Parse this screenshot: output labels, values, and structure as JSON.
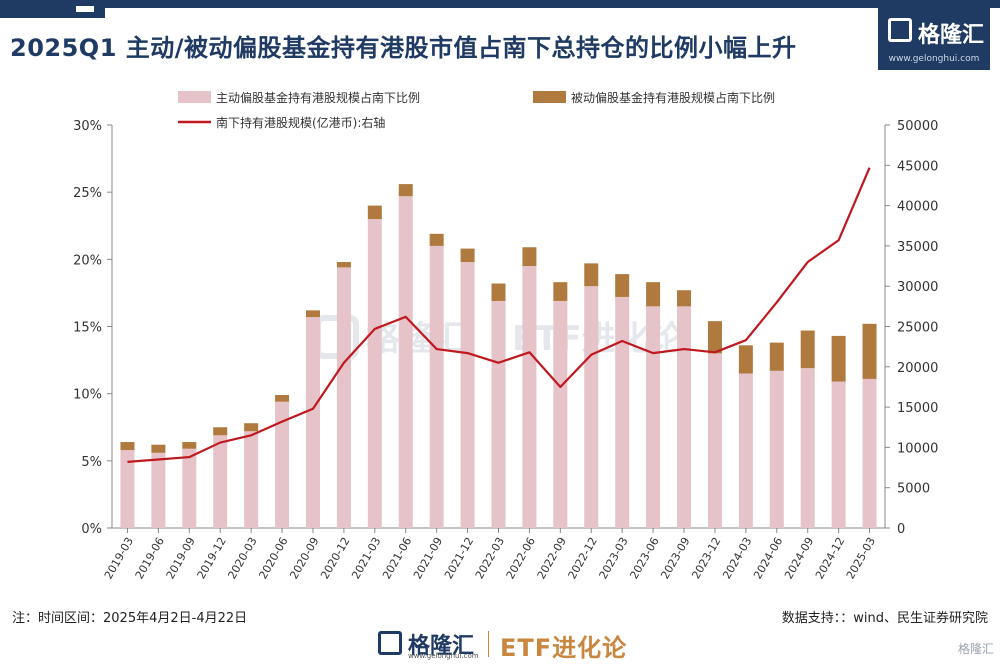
{
  "header": {
    "title": "2025Q1 主动/被动偏股基金持有港股市值占南下总持仓的比例小幅上升",
    "logo_name": "格隆汇",
    "logo_url": "www.gelonghui.com"
  },
  "footer": {
    "note": "注：时间区间：2025年4月2日-4月22日",
    "source": "数据支持：：wind、民生证券研究院",
    "brand": "格隆汇",
    "brand_url": "www.gelonghui.com",
    "etf_text": "ETF进化论",
    "corner_watermark": "格隆汇"
  },
  "watermark": {
    "brand": "格隆汇",
    "etf_text": "ETF进化论"
  },
  "colors": {
    "active": "#e6c3c8",
    "passive": "#b07a3e",
    "line": "#c0181f",
    "brand": "#1f3a63",
    "accent": "#c8863f"
  },
  "chart_data": {
    "type": "bar",
    "stacked": true,
    "categories": [
      "2019-03",
      "2019-06",
      "2019-09",
      "2019-12",
      "2020-03",
      "2020-06",
      "2020-09",
      "2020-12",
      "2021-03",
      "2021-06",
      "2021-09",
      "2021-12",
      "2022-03",
      "2022-06",
      "2022-09",
      "2022-12",
      "2023-03",
      "2023-06",
      "2023-09",
      "2023-12",
      "2024-03",
      "2024-06",
      "2024-09",
      "2024-12",
      "2025-03"
    ],
    "series": [
      {
        "name": "主动偏股基金持有港股规模占南下比例",
        "axis": "left",
        "type": "bar",
        "values": [
          5.8,
          5.6,
          5.9,
          6.9,
          7.2,
          9.4,
          15.7,
          19.4,
          23.0,
          24.7,
          21.0,
          19.8,
          16.9,
          19.5,
          16.9,
          18.0,
          17.2,
          16.5,
          16.5,
          13.0,
          11.5,
          11.7,
          11.9,
          10.9,
          11.1
        ]
      },
      {
        "name": "被动偏股基金持有港股规模占南下比例",
        "axis": "left",
        "type": "bar",
        "values": [
          0.6,
          0.6,
          0.5,
          0.6,
          0.6,
          0.5,
          0.5,
          0.4,
          1.0,
          0.9,
          0.9,
          1.0,
          1.3,
          1.4,
          1.4,
          1.7,
          1.7,
          1.8,
          1.2,
          2.4,
          2.1,
          2.1,
          2.8,
          3.4,
          4.1
        ]
      },
      {
        "name": "南下持有港股规模(亿港币):右轴",
        "axis": "right",
        "type": "line",
        "values": [
          8200,
          8500,
          8800,
          10600,
          11500,
          13200,
          14800,
          20500,
          24700,
          26200,
          22200,
          21700,
          20500,
          21800,
          17500,
          21500,
          23200,
          21700,
          22200,
          21800,
          23300,
          28000,
          33000,
          35700,
          44700
        ]
      }
    ],
    "y_left": {
      "min": 0,
      "max": 30,
      "ticks": [
        "0%",
        "5%",
        "10%",
        "15%",
        "20%",
        "25%",
        "30%"
      ]
    },
    "y_right": {
      "min": 0,
      "max": 50000,
      "ticks": [
        "0",
        "5000",
        "10000",
        "15000",
        "20000",
        "25000",
        "30000",
        "35000",
        "40000",
        "45000",
        "50000"
      ]
    },
    "legend_position": "top",
    "grid": false
  }
}
